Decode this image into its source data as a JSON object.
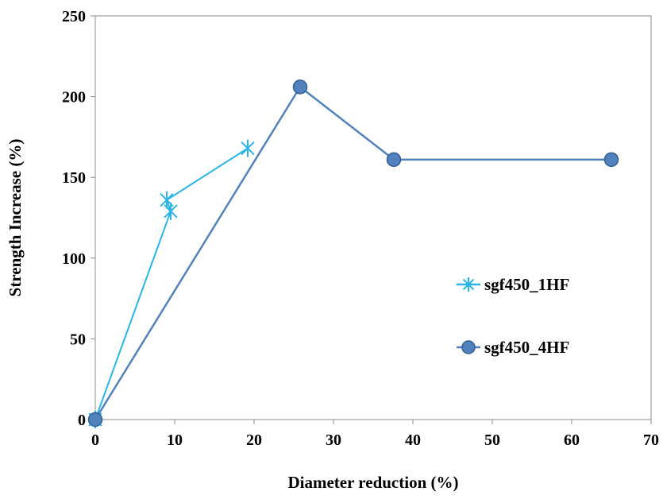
{
  "chart_data": {
    "type": "scatter",
    "xlabel": "Diameter reduction (%)",
    "ylabel": "Strength  Increase  (%)",
    "xlim": [
      0,
      70
    ],
    "ylim": [
      0,
      250
    ],
    "xticks": [
      0,
      10,
      20,
      30,
      40,
      50,
      60,
      70
    ],
    "yticks": [
      0,
      50,
      100,
      150,
      200,
      250
    ],
    "grid": false,
    "legend_position": "right-middle",
    "series": [
      {
        "name": "sgf450_1HF",
        "marker": "star",
        "color": "#29B5E8",
        "x": [
          0,
          9.5,
          9.0,
          19.2
        ],
        "y": [
          0,
          129,
          136,
          168
        ]
      },
      {
        "name": "sgf450_4HF",
        "marker": "circle",
        "color": "#5282BE",
        "x": [
          0,
          25.8,
          37.6,
          65
        ],
        "y": [
          0,
          206,
          161,
          161
        ]
      }
    ]
  }
}
